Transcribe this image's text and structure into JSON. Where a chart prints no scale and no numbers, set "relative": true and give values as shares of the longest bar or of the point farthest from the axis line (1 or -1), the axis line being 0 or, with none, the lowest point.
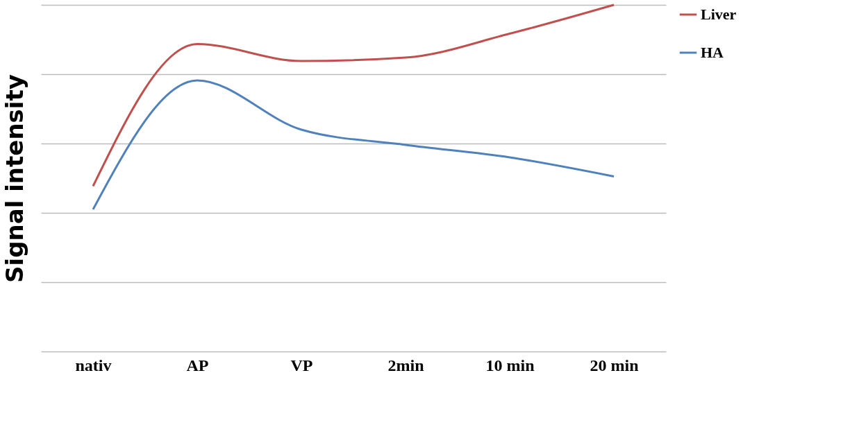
{
  "chart_data": {
    "type": "line",
    "ylabel": "Signal intensity",
    "categories": [
      "nativ",
      "AP",
      "VP",
      "2min",
      "10 min",
      "20 min"
    ],
    "relative": true,
    "grid": "y",
    "legend": "right",
    "series": [
      {
        "name": "Liver",
        "color": "#c0504d",
        "values": [
          0.477,
          0.887,
          0.838,
          0.848,
          0.917,
          1
        ]
      },
      {
        "name": "HA",
        "color": "#4f81bd",
        "values": [
          0.41,
          0.782,
          0.64,
          0.596,
          0.56,
          0.505
        ]
      }
    ]
  }
}
